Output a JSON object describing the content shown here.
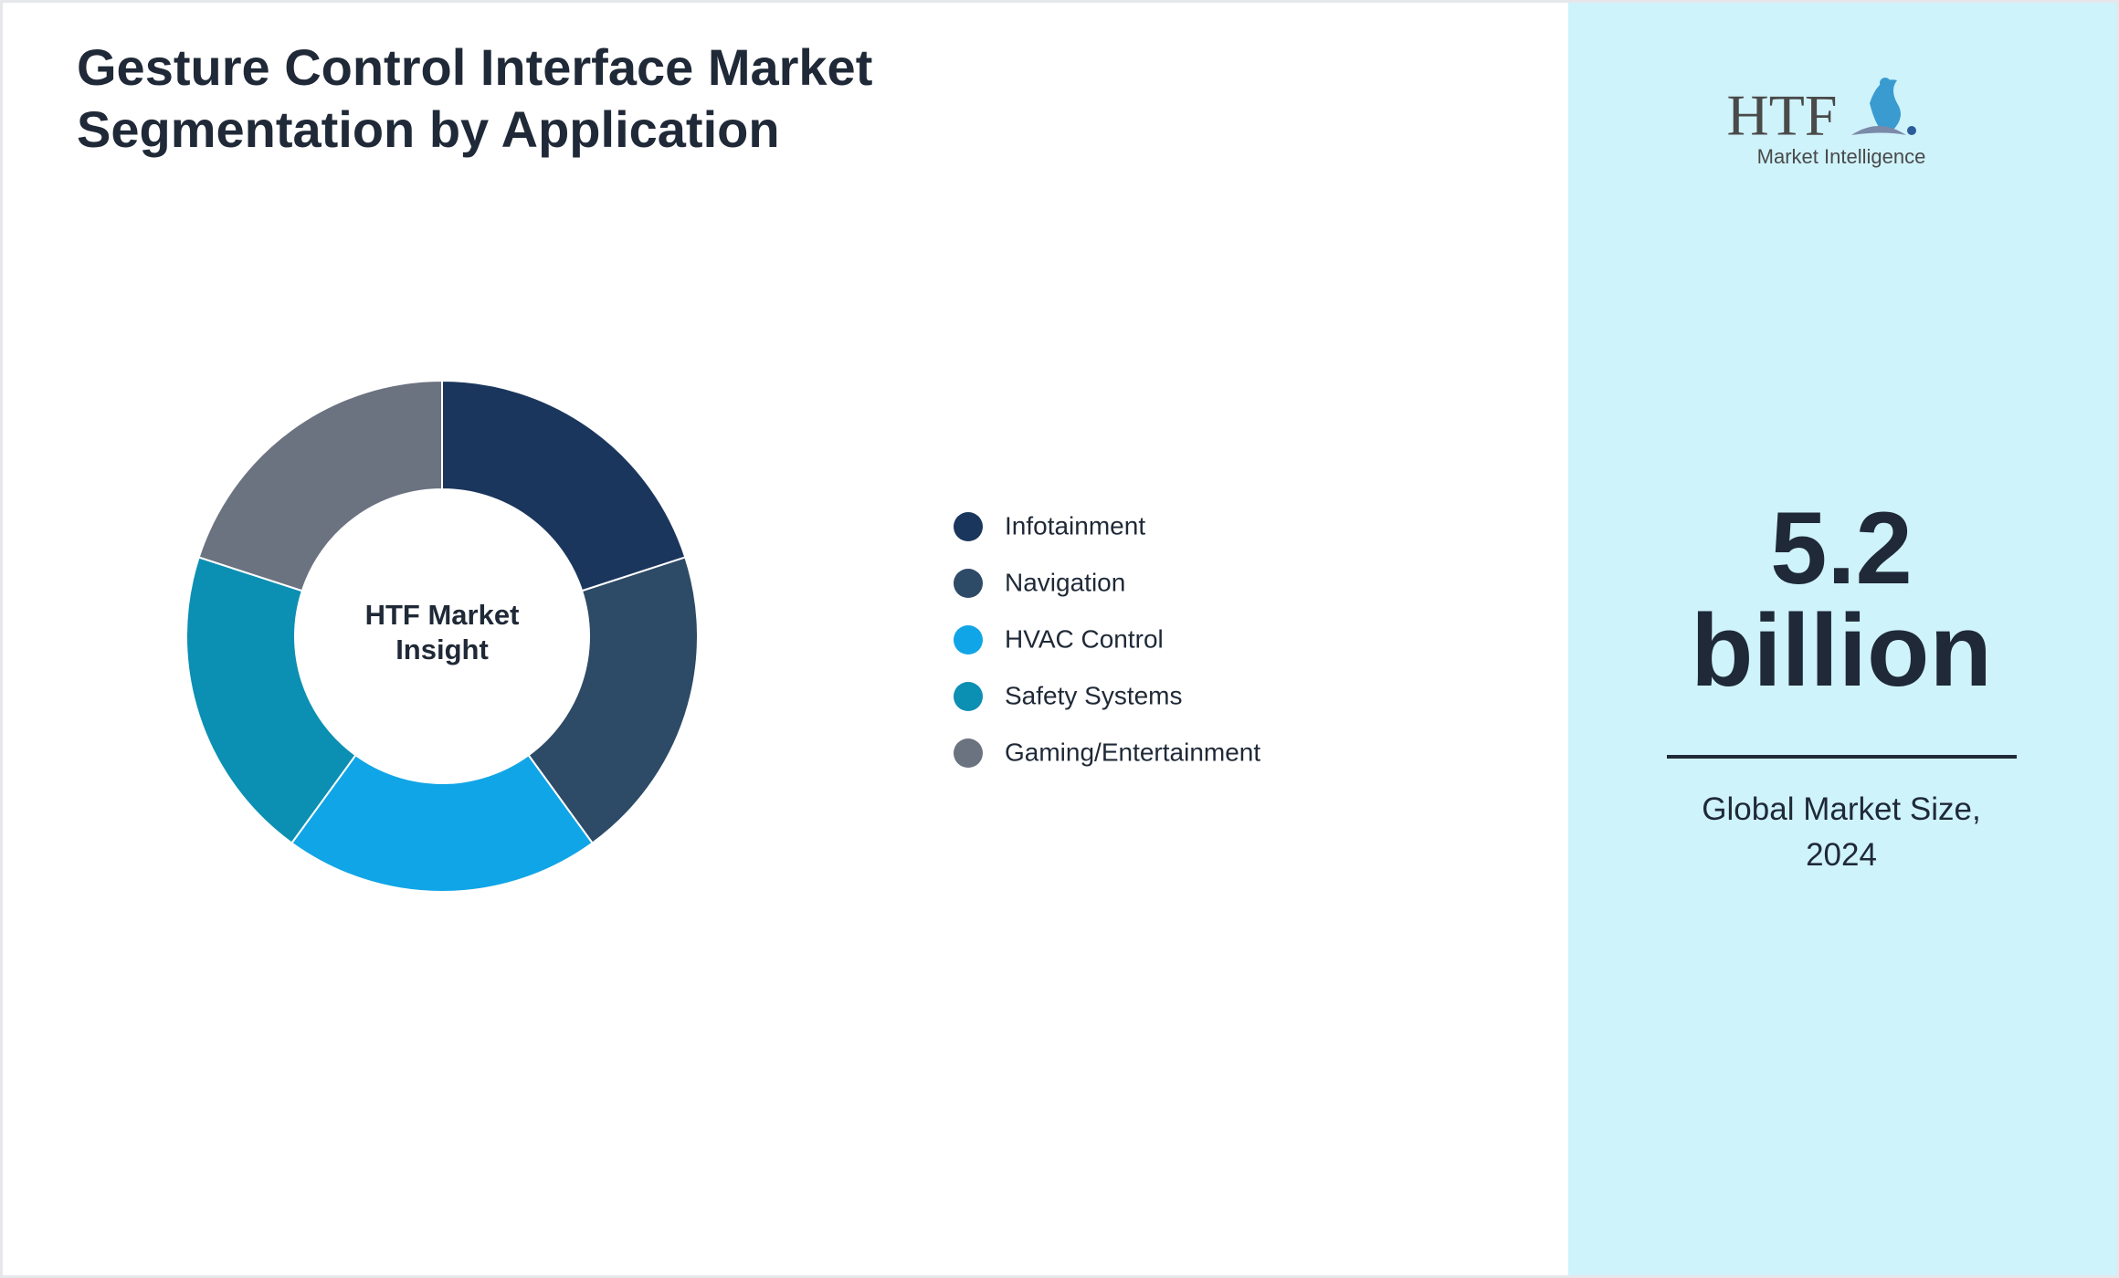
{
  "chart_data": {
    "type": "donut",
    "title": "Gesture Control Interface Market Segmentation by Application",
    "center_label": "HTF Market Insight",
    "categories": [
      "Infotainment",
      "Navigation",
      "HVAC Control",
      "Safety Systems",
      "Gaming/Entertainment"
    ],
    "values": [
      20,
      20,
      20,
      20,
      20
    ],
    "colors": [
      "#1b365d",
      "#2d4a66",
      "#10a5e6",
      "#0b8fb3",
      "#6b7280"
    ]
  },
  "logo": {
    "brand": "HTF",
    "tagline": "Market Intelligence"
  },
  "highlight": {
    "value": "5.2 billion",
    "caption": "Global Market Size, 2024"
  }
}
